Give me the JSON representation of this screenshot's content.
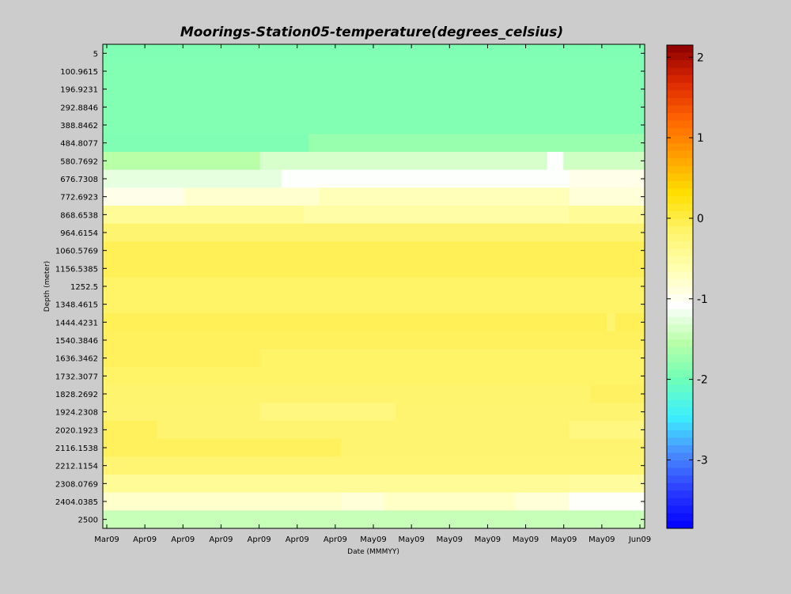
{
  "chart_data": {
    "type": "heatmap",
    "title": "Moorings-Station05-temperature(degrees_celsius)",
    "xlabel": "Date (MMMYY)",
    "ylabel": "Depth (meter)",
    "x_tick_labels": [
      "Mar09",
      "Apr09",
      "Apr09",
      "Apr09",
      "Apr09",
      "Apr09",
      "Apr09",
      "May09",
      "May09",
      "May09",
      "May09",
      "May09",
      "May09",
      "May09",
      "Jun09"
    ],
    "y_tick_labels": [
      "5",
      "100.9615",
      "196.9231",
      "292.8846",
      "388.8462",
      "484.8077",
      "580.7692",
      "676.7308",
      "772.6923",
      "868.6538",
      "964.6154",
      "1060.5769",
      "1156.5385",
      "1252.5",
      "1348.4615",
      "1444.4231",
      "1540.3846",
      "1636.3462",
      "1732.3077",
      "1828.2692",
      "1924.2308",
      "2020.1923",
      "2116.1538",
      "2212.1154",
      "2308.0769",
      "2404.0385",
      "2500"
    ],
    "colorbar": {
      "range": [
        -3.85,
        2.15
      ],
      "tick_values": [
        2,
        1,
        0,
        -1,
        -2,
        -3
      ],
      "tick_labels": [
        "2",
        "1",
        "0",
        "-1",
        "-2",
        "-3"
      ],
      "colors": [
        "#0000ff",
        "#2a3bff",
        "#4a8cff",
        "#3cf0ff",
        "#6fffb8",
        "#b9ffa8",
        "#ffffff",
        "#ffffb0",
        "#fff36a",
        "#ffe000",
        "#ffa000",
        "#ff6400",
        "#dc2800",
        "#8b0000"
      ]
    },
    "depth_rows": [
      {
        "depth": "5",
        "segments": [
          {
            "to": 1.0,
            "value": -1.9
          }
        ]
      },
      {
        "depth": "100.9615",
        "segments": [
          {
            "to": 1.0,
            "value": -1.88
          }
        ]
      },
      {
        "depth": "196.9231",
        "segments": [
          {
            "to": 1.0,
            "value": -1.88
          }
        ]
      },
      {
        "depth": "292.8846",
        "segments": [
          {
            "to": 1.0,
            "value": -1.88
          }
        ]
      },
      {
        "depth": "388.8462",
        "segments": [
          {
            "to": 1.0,
            "value": -1.88
          }
        ]
      },
      {
        "depth": "484.8077",
        "segments": [
          {
            "to": 0.38,
            "value": -1.9
          },
          {
            "to": 1.0,
            "value": -1.75
          }
        ]
      },
      {
        "depth": "580.7692",
        "segments": [
          {
            "to": 0.29,
            "value": -1.55
          },
          {
            "to": 0.82,
            "value": -1.35
          },
          {
            "to": 0.85,
            "value": -1.1
          },
          {
            "to": 1.0,
            "value": -1.4
          }
        ]
      },
      {
        "depth": "676.7308",
        "segments": [
          {
            "to": 0.33,
            "value": -1.25
          },
          {
            "to": 0.86,
            "value": -1.1
          },
          {
            "to": 1.0,
            "value": -0.95
          }
        ]
      },
      {
        "depth": "772.6923",
        "segments": [
          {
            "to": 0.15,
            "value": -0.95
          },
          {
            "to": 0.4,
            "value": -0.8
          },
          {
            "to": 0.86,
            "value": -0.68
          },
          {
            "to": 1.0,
            "value": -0.85
          }
        ]
      },
      {
        "depth": "868.6538",
        "segments": [
          {
            "to": 0.37,
            "value": -0.45
          },
          {
            "to": 0.86,
            "value": -0.55
          },
          {
            "to": 1.0,
            "value": -0.45
          }
        ]
      },
      {
        "depth": "964.6154",
        "segments": [
          {
            "to": 1.0,
            "value": -0.2
          }
        ]
      },
      {
        "depth": "1060.5769",
        "segments": [
          {
            "to": 1.0,
            "value": -0.08
          }
        ]
      },
      {
        "depth": "1156.5385",
        "segments": [
          {
            "to": 1.0,
            "value": -0.08
          }
        ]
      },
      {
        "depth": "1252.5",
        "segments": [
          {
            "to": 1.0,
            "value": -0.15
          }
        ]
      },
      {
        "depth": "1348.4615",
        "segments": [
          {
            "to": 1.0,
            "value": -0.15
          }
        ]
      },
      {
        "depth": "1444.4231",
        "segments": [
          {
            "to": 0.93,
            "value": -0.08
          },
          {
            "to": 0.945,
            "value": -0.2
          },
          {
            "to": 1.0,
            "value": -0.08
          }
        ]
      },
      {
        "depth": "1540.3846",
        "segments": [
          {
            "to": 1.0,
            "value": -0.1
          }
        ]
      },
      {
        "depth": "1636.3462",
        "segments": [
          {
            "to": 0.29,
            "value": -0.1
          },
          {
            "to": 1.0,
            "value": -0.15
          }
        ]
      },
      {
        "depth": "1732.3077",
        "segments": [
          {
            "to": 1.0,
            "value": -0.15
          }
        ]
      },
      {
        "depth": "1828.2692",
        "segments": [
          {
            "to": 0.9,
            "value": -0.18
          },
          {
            "to": 1.0,
            "value": -0.12
          }
        ]
      },
      {
        "depth": "1924.2308",
        "segments": [
          {
            "to": 0.29,
            "value": -0.2
          },
          {
            "to": 0.54,
            "value": -0.3
          },
          {
            "to": 1.0,
            "value": -0.2
          }
        ]
      },
      {
        "depth": "2020.1923",
        "segments": [
          {
            "to": 0.1,
            "value": -0.1
          },
          {
            "to": 0.86,
            "value": -0.2
          },
          {
            "to": 1.0,
            "value": -0.3
          }
        ]
      },
      {
        "depth": "2116.1538",
        "segments": [
          {
            "to": 0.44,
            "value": -0.1
          },
          {
            "to": 1.0,
            "value": -0.2
          }
        ]
      },
      {
        "depth": "2212.1154",
        "segments": [
          {
            "to": 1.0,
            "value": -0.22
          }
        ]
      },
      {
        "depth": "2308.0769",
        "segments": [
          {
            "to": 0.86,
            "value": -0.45
          },
          {
            "to": 1.0,
            "value": -0.5
          }
        ]
      },
      {
        "depth": "2404.0385",
        "segments": [
          {
            "to": 0.44,
            "value": -0.78
          },
          {
            "to": 0.52,
            "value": -0.85
          },
          {
            "to": 0.76,
            "value": -0.75
          },
          {
            "to": 0.86,
            "value": -0.85
          },
          {
            "to": 1.0,
            "value": -1.05
          }
        ]
      },
      {
        "depth": "2500",
        "segments": [
          {
            "to": 1.0,
            "value": -1.45
          }
        ]
      }
    ]
  }
}
